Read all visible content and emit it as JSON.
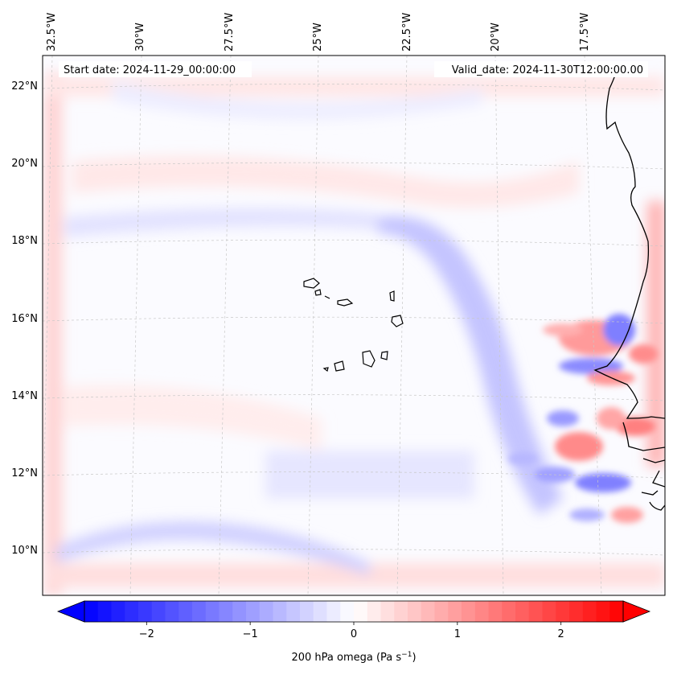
{
  "map": {
    "start_date": "Start date: 2024-11-29_00:00:00",
    "valid_date": "Valid_date: 2024-11-30T12:00:00.00",
    "lon_labels": [
      "32.5°W",
      "30°W",
      "27.5°W",
      "25°W",
      "22.5°W",
      "20°W",
      "17.5°W"
    ],
    "lat_labels": [
      "22°N",
      "20°N",
      "18°N",
      "16°N",
      "14°N",
      "12°N",
      "10°N"
    ],
    "field": "200 hPa omega",
    "region": "Cape Verde / West African coast"
  },
  "colorbar": {
    "title": "200 hPa omega (Pa s",
    "title_sup": "−1",
    "title_end": ")",
    "ticks": [
      "−2",
      "−1",
      "0",
      "1",
      "2"
    ],
    "tick_values": [
      -2,
      -1,
      0,
      1,
      2
    ],
    "range": [
      -2.6,
      2.6
    ],
    "colormap": "bwr",
    "extend": "both",
    "low_color": "#0000ff",
    "mid_color": "#ffffff",
    "high_color": "#ff0000"
  }
}
